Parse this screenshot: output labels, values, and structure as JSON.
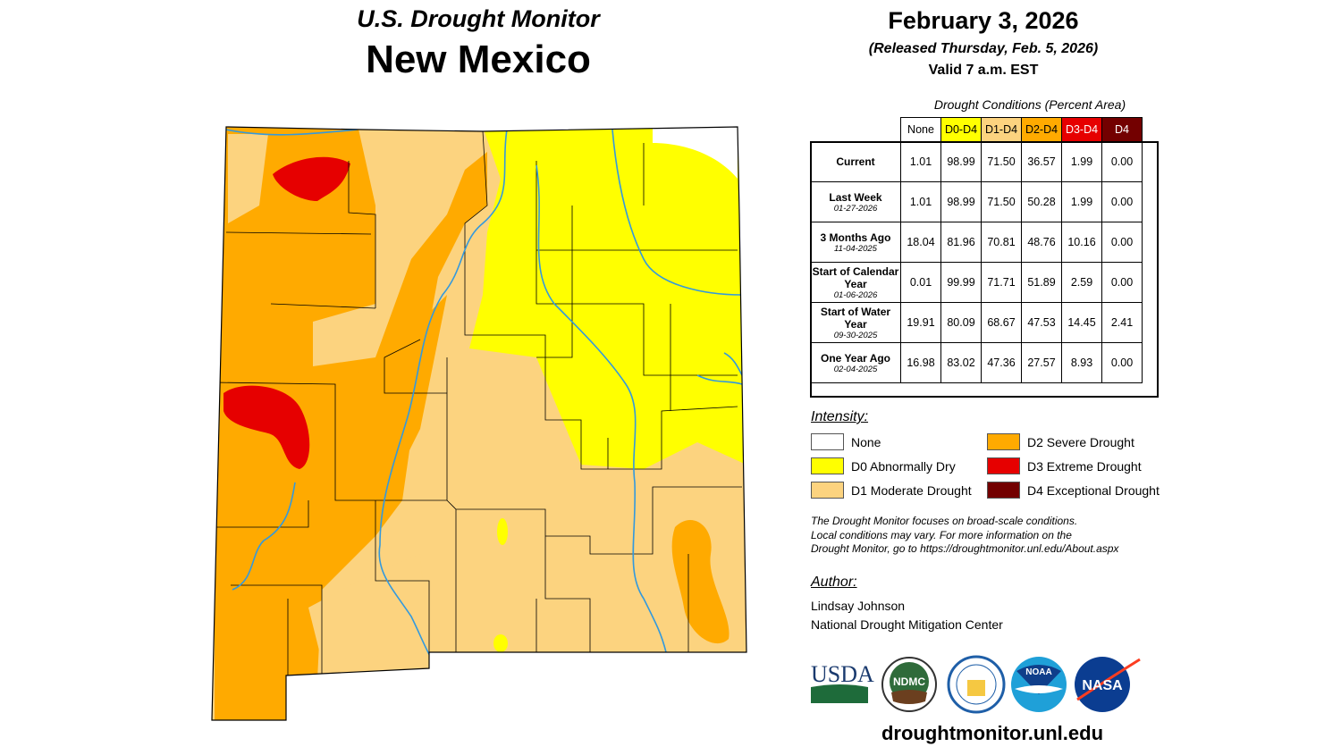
{
  "header": {
    "product": "U.S. Drought Monitor",
    "state": "New Mexico",
    "date": "February 3, 2026",
    "released": "(Released Thursday, Feb. 5, 2026)",
    "valid": "Valid 7 a.m. EST"
  },
  "table": {
    "caption": "Drought Conditions (Percent Area)",
    "columns": [
      {
        "label": "None",
        "color": "#FFFFFF",
        "text": "#000000"
      },
      {
        "label": "D0-D4",
        "color": "#FFFF00",
        "text": "#000000"
      },
      {
        "label": "D1-D4",
        "color": "#FCD37F",
        "text": "#000000"
      },
      {
        "label": "D2-D4",
        "color": "#FFAA00",
        "text": "#000000"
      },
      {
        "label": "D3-D4",
        "color": "#E60000",
        "text": "#FFFFFF"
      },
      {
        "label": "D4",
        "color": "#730000",
        "text": "#FFFFFF"
      }
    ],
    "rows": [
      {
        "label": "Current",
        "date": "",
        "values": [
          "1.01",
          "98.99",
          "71.50",
          "36.57",
          "1.99",
          "0.00"
        ]
      },
      {
        "label": "Last Week",
        "date": "01-27-2026",
        "values": [
          "1.01",
          "98.99",
          "71.50",
          "50.28",
          "1.99",
          "0.00"
        ]
      },
      {
        "label": "3 Months Ago",
        "date": "11-04-2025",
        "values": [
          "18.04",
          "81.96",
          "70.81",
          "48.76",
          "10.16",
          "0.00"
        ]
      },
      {
        "label": "Start of Calendar Year",
        "date": "01-06-2026",
        "values": [
          "0.01",
          "99.99",
          "71.71",
          "51.89",
          "2.59",
          "0.00"
        ]
      },
      {
        "label": "Start of Water Year",
        "date": "09-30-2025",
        "values": [
          "19.91",
          "80.09",
          "68.67",
          "47.53",
          "14.45",
          "2.41"
        ]
      },
      {
        "label": "One Year Ago",
        "date": "02-04-2025",
        "values": [
          "16.98",
          "83.02",
          "47.36",
          "27.57",
          "8.93",
          "0.00"
        ]
      }
    ]
  },
  "legend": {
    "title": "Intensity:",
    "items": [
      {
        "label": "None",
        "color": "#FFFFFF"
      },
      {
        "label": "D0 Abnormally Dry",
        "color": "#FFFF00"
      },
      {
        "label": "D1 Moderate Drought",
        "color": "#FCD37F"
      },
      {
        "label": "D2 Severe Drought",
        "color": "#FFAA00"
      },
      {
        "label": "D3 Extreme Drought",
        "color": "#E60000"
      },
      {
        "label": "D4 Exceptional Drought",
        "color": "#730000"
      }
    ]
  },
  "note": [
    "The Drought Monitor focuses on broad-scale conditions.",
    "Local conditions may vary. For more information on the",
    "Drought Monitor, go to https://droughtmonitor.unl.edu/About.aspx"
  ],
  "author": {
    "title": "Author:",
    "name": "Lindsay Johnson",
    "org": "National Drought Mitigation Center"
  },
  "logos": [
    "USDA",
    "NDMC",
    "Department of Commerce",
    "NOAA",
    "NASA"
  ],
  "site": "droughtmonitor.unl.edu",
  "colors": {
    "river": "#3399DD",
    "county_border": "#000000"
  }
}
